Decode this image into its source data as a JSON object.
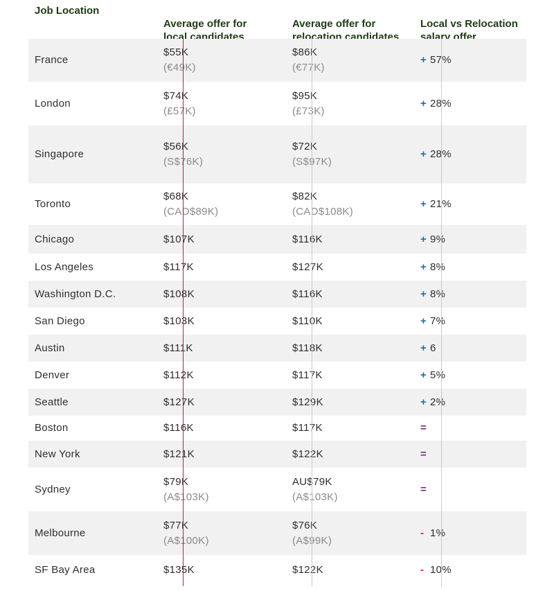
{
  "headers": [
    "Job Location",
    "Average offer for\nlocal candidates",
    "Average offer for\nrelocation candidates",
    "Local vs Relocation\nsalary offer"
  ],
  "colors": {
    "header_text": "#1e3a14",
    "row_shade": "#f1f1f1",
    "plus": "#1f6fa6",
    "equal": "#7a2a86",
    "minus": "#d4272e",
    "divider_first": "#b8213a",
    "divider": "#c8c8c8"
  },
  "chart_data": {
    "type": "table",
    "columns": [
      "Job Location",
      "Average offer for local candidates",
      "Average offer for relocation candidates",
      "Local vs Relocation salary offer"
    ],
    "rows": [
      {
        "location": "France",
        "local": "$55K",
        "local_sub": "(€49K)",
        "relocation": "$86K",
        "relocation_sub": "(€77K)",
        "diff_sign": "+",
        "diff": "57%"
      },
      {
        "location": "London",
        "local": "$74K",
        "local_sub": "(£57K)",
        "relocation": "$95K",
        "relocation_sub": "(£73K)",
        "diff_sign": "+",
        "diff": "28%"
      },
      {
        "location": "Singapore",
        "local": "$56K",
        "local_sub": "(S$76K)",
        "relocation": "$72K",
        "relocation_sub": "(S$97K)",
        "diff_sign": "+",
        "diff": "28%"
      },
      {
        "location": "Toronto",
        "local": "$68K",
        "local_sub": "(CAD$89K)",
        "relocation": "$82K",
        "relocation_sub": "(CAD$108K)",
        "diff_sign": "+",
        "diff": "21%"
      },
      {
        "location": "Chicago",
        "local": "$107K",
        "relocation": "$116K",
        "diff_sign": "+",
        "diff": "9%"
      },
      {
        "location": "Los Angeles",
        "local": "$117K",
        "relocation": "$127K",
        "diff_sign": "+",
        "diff": "8%"
      },
      {
        "location": "Washington D.C.",
        "local": "$108K",
        "relocation": "$116K",
        "diff_sign": "+",
        "diff": "8%"
      },
      {
        "location": "San Diego",
        "local": "$103K",
        "relocation": "$110K",
        "diff_sign": "+",
        "diff": "7%"
      },
      {
        "location": "Austin",
        "local": "$111K",
        "relocation": "$118K",
        "diff_sign": "+",
        "diff": "6"
      },
      {
        "location": "Denver",
        "local": "$112K",
        "relocation": "$117K",
        "diff_sign": "+",
        "diff": "5%"
      },
      {
        "location": "Seattle",
        "local": "$127K",
        "relocation": "$129K",
        "diff_sign": "+",
        "diff": "2%"
      },
      {
        "location": "Boston",
        "local": "$116K",
        "relocation": "$117K",
        "diff_sign": "=",
        "diff": ""
      },
      {
        "location": "New York",
        "local": "$121K",
        "relocation": "$122K",
        "diff_sign": "=",
        "diff": ""
      },
      {
        "location": "Sydney",
        "local": "$79K",
        "local_sub": "(A$103K)",
        "relocation": "AU$79K",
        "relocation_sub": "(A$103K)",
        "diff_sign": "=",
        "diff": ""
      },
      {
        "location": "Melbourne",
        "local": "$77K",
        "local_sub": "(A$100K)",
        "relocation": "$76K",
        "relocation_sub": "(A$99K)",
        "diff_sign": "-",
        "diff": "1%"
      },
      {
        "location": "SF Bay Area",
        "local": "$135K",
        "relocation": "$122K",
        "diff_sign": "-",
        "diff": "10%"
      }
    ]
  }
}
